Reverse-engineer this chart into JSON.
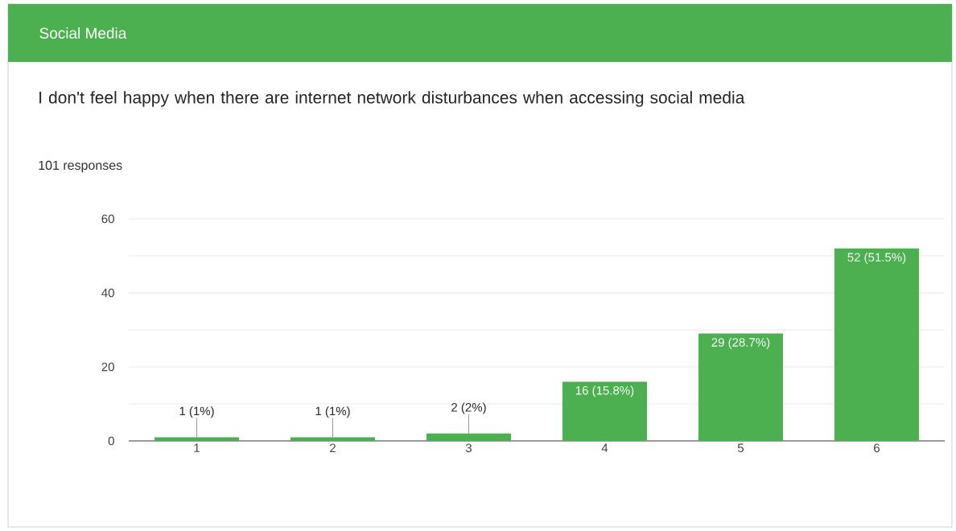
{
  "chart_data": {
    "type": "bar",
    "title": "Social Media",
    "subtitle": "I don't feel happy when there are internet network disturbances when accessing social media",
    "annotations": [
      "101 responses"
    ],
    "categories": [
      "1",
      "2",
      "3",
      "4",
      "5",
      "6"
    ],
    "values": [
      1,
      1,
      2,
      16,
      29,
      52
    ],
    "value_labels": [
      "1 (1%)",
      "1 (1%)",
      "2 (2%)",
      "16 (15.8%)",
      "29 (28.7%)",
      "52 (51.5%)"
    ],
    "color": "#4caf50",
    "ylim": [
      0,
      60
    ],
    "yticks": [
      0,
      {
        "value": 10,
        "label": null
      },
      20,
      {
        "value": 30,
        "label": null
      },
      40,
      {
        "value": 50,
        "label": null
      },
      60
    ],
    "grid": "y"
  }
}
